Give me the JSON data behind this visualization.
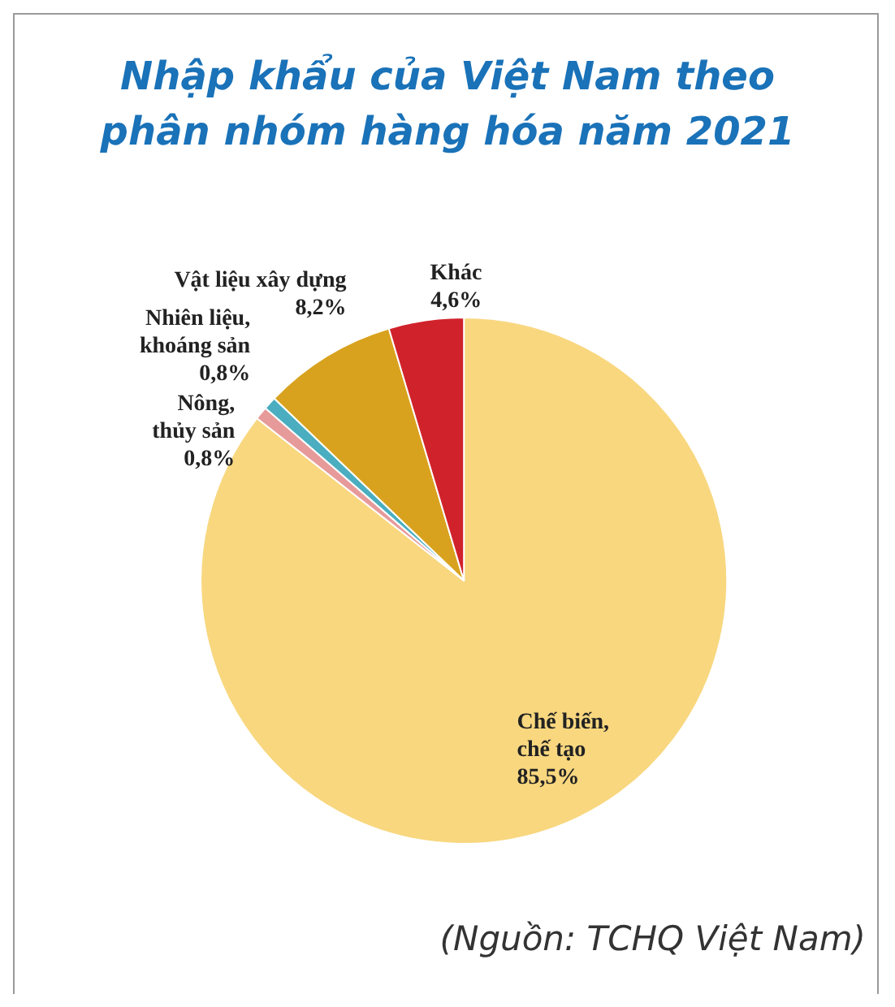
{
  "chart_data": {
    "type": "pie",
    "title": "Nhập khẩu của Việt Nam theo phân nhóm hàng hóa năm 2021",
    "categories": [
      "Chế biến, chế tạo",
      "Nông, thủy sản",
      "Nhiên liệu, khoáng sản",
      "Vật liệu xây dựng",
      "Khác"
    ],
    "values": [
      85.5,
      0.8,
      0.8,
      8.2,
      4.6
    ],
    "value_labels": [
      "85,5%",
      "0,8%",
      "0,8%",
      "8,2%",
      "4,6%"
    ],
    "colors": [
      "#f8d77f",
      "#e79a9a",
      "#4aaec0",
      "#d9a21e",
      "#d0222b"
    ],
    "annotations": [
      "(Nguồn: TCHQ Việt Nam)"
    ]
  }
}
